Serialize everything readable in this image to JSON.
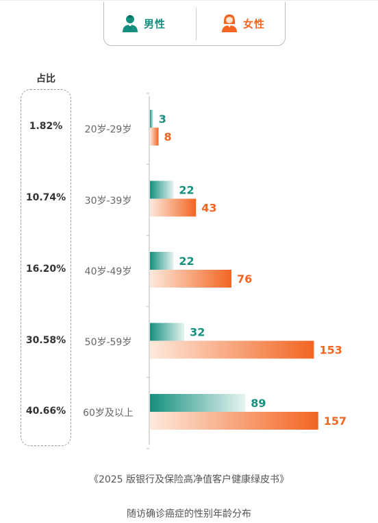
{
  "legend": {
    "male_label": "男性",
    "female_label": "女性",
    "male_icon": "male-user-icon",
    "female_icon": "female-user-icon"
  },
  "share_header": "占比",
  "caption_line1": "《2025 版银行及保险高净值客户健康绿皮书》",
  "caption_line2": "随访确诊癌症的性别年龄分布",
  "colors": {
    "male": "#15907f",
    "female": "#f26522",
    "male_light": "#e6f4f1",
    "female_light": "#fde9dc"
  },
  "chart_data": {
    "type": "bar",
    "orientation": "horizontal",
    "categories": [
      "20岁-29岁",
      "30岁-39岁",
      "40岁-49岁",
      "50岁-59岁",
      "60岁及以上"
    ],
    "shares": [
      "1.82%",
      "10.74%",
      "16.20%",
      "30.58%",
      "40.66%"
    ],
    "series": [
      {
        "name": "男性",
        "values": [
          3,
          22,
          22,
          32,
          89
        ]
      },
      {
        "name": "女性",
        "values": [
          8,
          43,
          76,
          153,
          157
        ]
      }
    ]
  }
}
